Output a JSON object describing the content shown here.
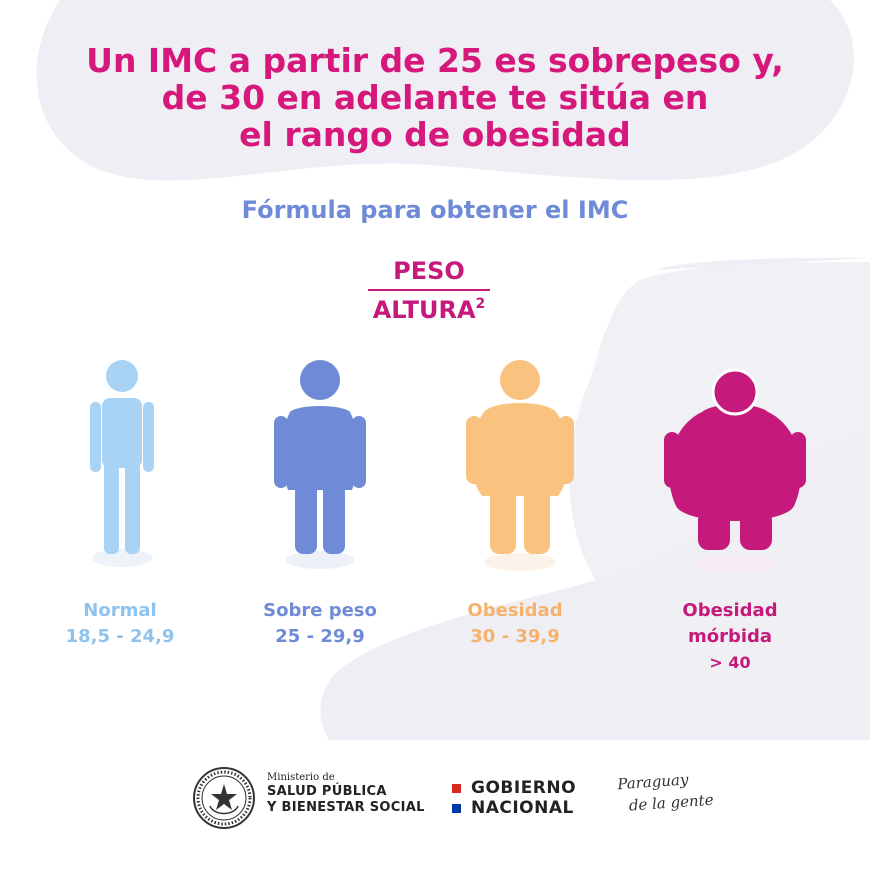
{
  "headline": {
    "line1": "Un IMC a partir de 25 es sobrepeso y,",
    "line2": "de 30 en adelante te sitúa en",
    "line3": "el rango de obesidad"
  },
  "formula": {
    "title": "Fórmula para obtener el IMC",
    "numerator": "PESO",
    "denominator": "ALTURA",
    "exponent": "2"
  },
  "categories": [
    {
      "label": "Normal",
      "range": "18,5 - 24,9",
      "color": "#8fc3ef",
      "icon": "person-normal-icon"
    },
    {
      "label": "Sobre peso",
      "range": "25 - 29,9",
      "color": "#6f8ad6",
      "icon": "person-overweight-icon"
    },
    {
      "label": "Obesidad",
      "range": "30 - 39,9",
      "color": "#f6b26b",
      "icon": "person-obese-icon"
    },
    {
      "label_line1": "Obesidad",
      "label_line2": "mórbida",
      "range": "> 40",
      "color": "#c51a7b",
      "icon": "person-morbid-obese-icon"
    }
  ],
  "footer": {
    "ministry_small": "Ministerio de",
    "ministry_line1": "SALUD PÚBLICA",
    "ministry_line2": "Y BIENESTAR SOCIAL",
    "gobierno_line1": "GOBIERNO",
    "gobierno_line2": "NACIONAL",
    "slogan_line1": "Paraguay",
    "slogan_line2": "de la gente",
    "flag_red": "#d52b1e",
    "flag_blue": "#0038a8"
  }
}
